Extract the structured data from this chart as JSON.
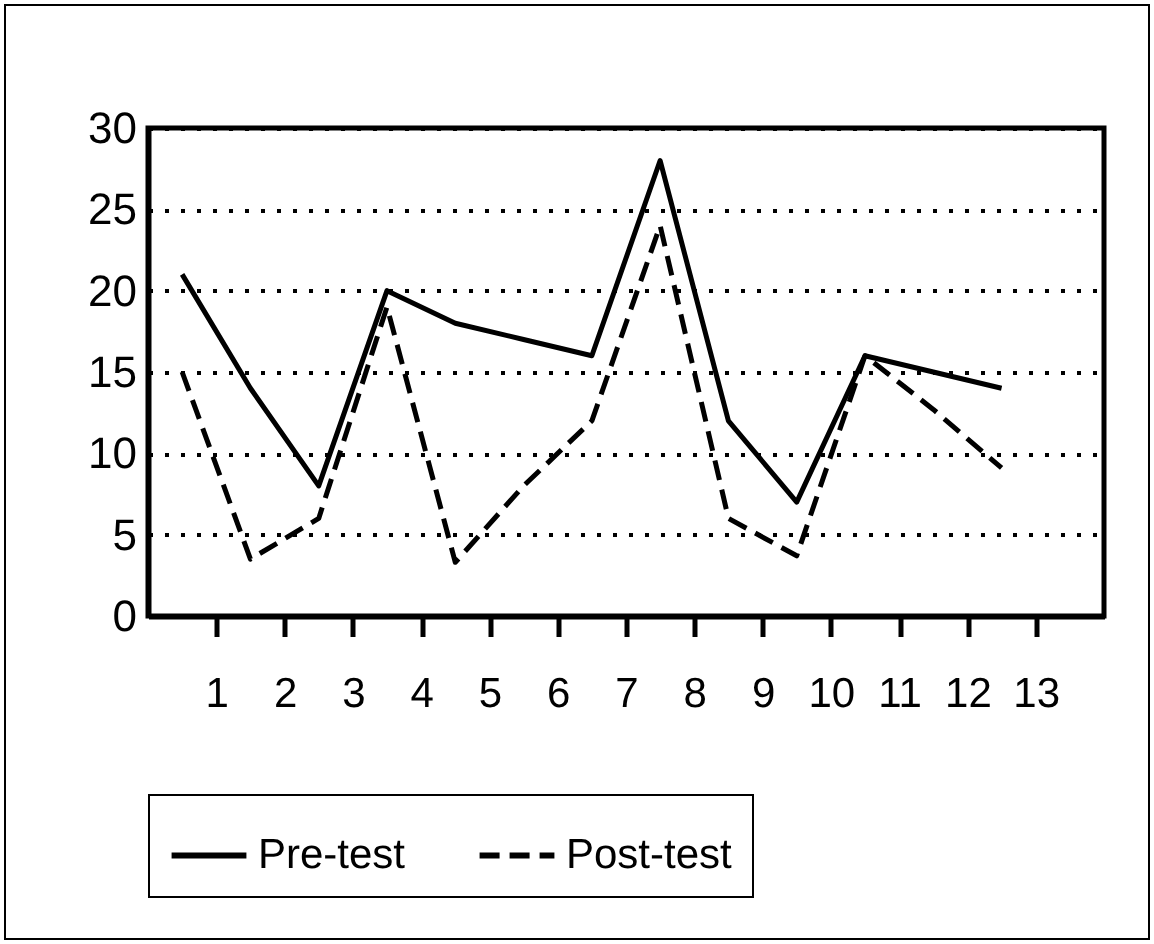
{
  "chart_data": {
    "type": "line",
    "x": [
      0.5,
      1.5,
      2.5,
      3.5,
      4.5,
      5.5,
      6.5,
      7.5,
      8.5,
      9.5,
      10.5,
      11.5,
      12.5
    ],
    "series": [
      {
        "name": "Pre-test",
        "color": "#000000",
        "line_style": "solid",
        "values": [
          21,
          14,
          8,
          20,
          18,
          17,
          16,
          28,
          12,
          7,
          16,
          15,
          14
        ]
      },
      {
        "name": "Post-test",
        "color": "#000000",
        "line_style": "dashed",
        "values": [
          15,
          3.5,
          6,
          19,
          3.3,
          8,
          12,
          24,
          6,
          3.7,
          16,
          12.7,
          9.1
        ]
      }
    ],
    "xlim": [
      0,
      14
    ],
    "xticks": [
      1,
      2,
      3,
      4,
      5,
      6,
      7,
      8,
      9,
      10,
      11,
      12,
      13
    ],
    "ylim": [
      0,
      30
    ],
    "yticks": [
      0,
      5,
      10,
      15,
      20,
      25,
      30
    ],
    "grid": "y",
    "legend": "bottom",
    "marker": "none"
  }
}
